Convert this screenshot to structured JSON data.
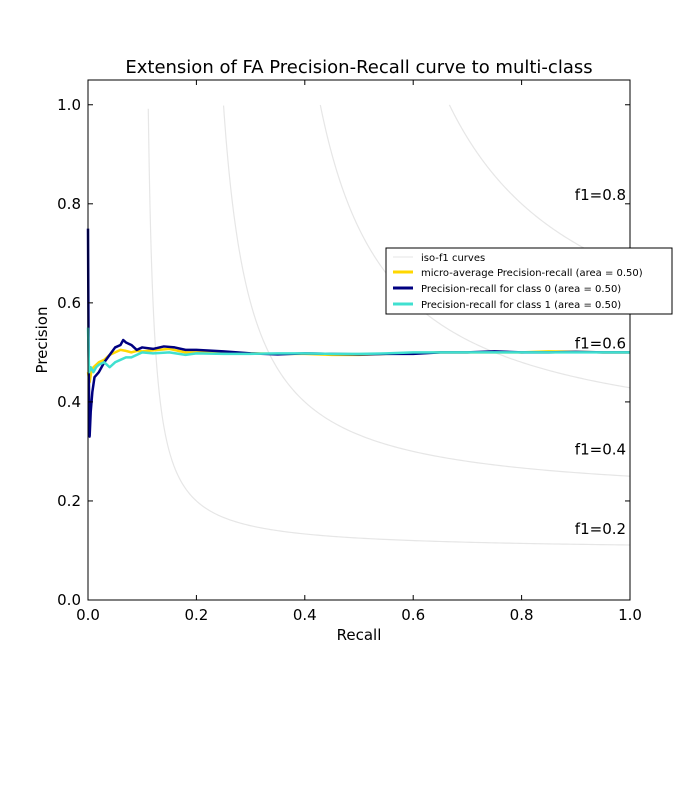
{
  "chart_data": {
    "type": "line",
    "title": "Extension of FA Precision-Recall curve to multi-class",
    "xlabel": "Recall",
    "ylabel": "Precision",
    "xlim": [
      0.0,
      1.0
    ],
    "ylim": [
      0.0,
      1.05
    ],
    "xticks": [
      0.0,
      0.2,
      0.4,
      0.6,
      0.8,
      1.0
    ],
    "xtick_labels": [
      "0.0",
      "0.2",
      "0.4",
      "0.6",
      "0.8",
      "1.0"
    ],
    "yticks": [
      0.0,
      0.2,
      0.4,
      0.6,
      0.8,
      1.0
    ],
    "ytick_labels": [
      "0.0",
      "0.2",
      "0.4",
      "0.6",
      "0.8",
      "1.0"
    ],
    "grid": false,
    "legend_position": "right",
    "iso_f1": {
      "legend_label": "iso-f1 curves",
      "color": "#e6e6e6",
      "values": [
        0.2,
        0.4,
        0.6,
        0.8
      ],
      "labels": [
        "f1=0.2",
        "f1=0.4",
        "f1=0.6",
        "f1=0.8"
      ]
    },
    "series": [
      {
        "name": "micro-average Precision-recall (area = 0.50)",
        "color": "#ffd700",
        "points": [
          [
            0.0,
            0.46
          ],
          [
            0.003,
            0.44
          ],
          [
            0.006,
            0.46
          ],
          [
            0.01,
            0.47
          ],
          [
            0.015,
            0.475
          ],
          [
            0.02,
            0.48
          ],
          [
            0.03,
            0.485
          ],
          [
            0.04,
            0.495
          ],
          [
            0.05,
            0.5
          ],
          [
            0.06,
            0.505
          ],
          [
            0.07,
            0.503
          ],
          [
            0.08,
            0.5
          ],
          [
            0.09,
            0.503
          ],
          [
            0.1,
            0.502
          ],
          [
            0.12,
            0.504
          ],
          [
            0.15,
            0.507
          ],
          [
            0.18,
            0.5
          ],
          [
            0.2,
            0.5
          ],
          [
            0.25,
            0.5
          ],
          [
            0.3,
            0.498
          ],
          [
            0.35,
            0.497
          ],
          [
            0.4,
            0.497
          ],
          [
            0.45,
            0.495
          ],
          [
            0.5,
            0.495
          ],
          [
            0.55,
            0.497
          ],
          [
            0.6,
            0.498
          ],
          [
            0.65,
            0.5
          ],
          [
            0.7,
            0.5
          ],
          [
            0.75,
            0.5
          ],
          [
            0.8,
            0.5
          ],
          [
            0.85,
            0.502
          ],
          [
            0.9,
            0.501
          ],
          [
            0.95,
            0.5
          ],
          [
            1.0,
            0.5
          ]
        ]
      },
      {
        "name": "Precision-recall for class 0 (area = 0.50)",
        "color": "#000080",
        "points": [
          [
            0.0,
            0.75
          ],
          [
            0.001,
            0.52
          ],
          [
            0.002,
            0.4
          ],
          [
            0.003,
            0.33
          ],
          [
            0.005,
            0.38
          ],
          [
            0.008,
            0.42
          ],
          [
            0.012,
            0.45
          ],
          [
            0.02,
            0.46
          ],
          [
            0.03,
            0.48
          ],
          [
            0.04,
            0.495
          ],
          [
            0.05,
            0.51
          ],
          [
            0.06,
            0.515
          ],
          [
            0.065,
            0.525
          ],
          [
            0.07,
            0.52
          ],
          [
            0.08,
            0.515
          ],
          [
            0.09,
            0.505
          ],
          [
            0.1,
            0.51
          ],
          [
            0.12,
            0.507
          ],
          [
            0.14,
            0.512
          ],
          [
            0.16,
            0.51
          ],
          [
            0.18,
            0.505
          ],
          [
            0.2,
            0.505
          ],
          [
            0.25,
            0.502
          ],
          [
            0.3,
            0.498
          ],
          [
            0.35,
            0.496
          ],
          [
            0.4,
            0.498
          ],
          [
            0.45,
            0.497
          ],
          [
            0.5,
            0.496
          ],
          [
            0.55,
            0.497
          ],
          [
            0.6,
            0.497
          ],
          [
            0.65,
            0.5
          ],
          [
            0.7,
            0.5
          ],
          [
            0.75,
            0.502
          ],
          [
            0.8,
            0.5
          ],
          [
            0.85,
            0.5
          ],
          [
            0.9,
            0.501
          ],
          [
            0.95,
            0.5
          ],
          [
            1.0,
            0.5
          ]
        ]
      },
      {
        "name": "Precision-recall for class 1 (area = 0.50)",
        "color": "#40e0d0",
        "points": [
          [
            0.0,
            0.55
          ],
          [
            0.002,
            0.46
          ],
          [
            0.005,
            0.47
          ],
          [
            0.01,
            0.46
          ],
          [
            0.015,
            0.47
          ],
          [
            0.02,
            0.475
          ],
          [
            0.03,
            0.48
          ],
          [
            0.04,
            0.47
          ],
          [
            0.05,
            0.48
          ],
          [
            0.06,
            0.485
          ],
          [
            0.07,
            0.49
          ],
          [
            0.08,
            0.49
          ],
          [
            0.09,
            0.495
          ],
          [
            0.1,
            0.5
          ],
          [
            0.12,
            0.498
          ],
          [
            0.15,
            0.5
          ],
          [
            0.18,
            0.495
          ],
          [
            0.2,
            0.498
          ],
          [
            0.25,
            0.497
          ],
          [
            0.3,
            0.497
          ],
          [
            0.35,
            0.498
          ],
          [
            0.4,
            0.498
          ],
          [
            0.45,
            0.497
          ],
          [
            0.5,
            0.497
          ],
          [
            0.55,
            0.498
          ],
          [
            0.6,
            0.5
          ],
          [
            0.65,
            0.5
          ],
          [
            0.7,
            0.5
          ],
          [
            0.75,
            0.5
          ],
          [
            0.8,
            0.5
          ],
          [
            0.85,
            0.5
          ],
          [
            0.9,
            0.5
          ],
          [
            0.95,
            0.5
          ],
          [
            1.0,
            0.5
          ]
        ]
      }
    ]
  }
}
